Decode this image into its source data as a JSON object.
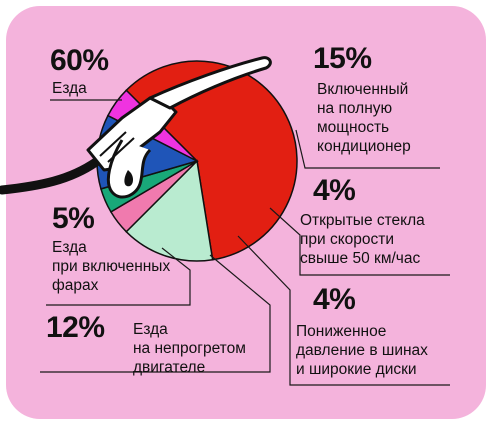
{
  "chart_data": {
    "type": "pie",
    "slices": [
      {
        "label": [
          "Езда"
        ],
        "percent_text": "60%",
        "value": 60,
        "color": "#e21f12"
      },
      {
        "label": [
          "Включенный",
          "на полную",
          "мощность",
          "кондиционер"
        ],
        "percent_text": "15%",
        "value": 15,
        "color": "#b9ebd0"
      },
      {
        "label": [
          "Открытые стекла",
          "при скорости",
          "свыше 50 км/час"
        ],
        "percent_text": "4%",
        "value": 4,
        "color": "#f07aae"
      },
      {
        "label": [
          "Пониженное",
          "давление в шинах",
          "и широкие диски"
        ],
        "percent_text": "4%",
        "value": 4,
        "color": "#19a879"
      },
      {
        "label": [
          "Езда",
          "на непрогретом",
          "двигателе"
        ],
        "percent_text": "12%",
        "value": 12,
        "color": "#1f55b8"
      },
      {
        "label": [
          "Езда",
          "при включенных",
          "фарах"
        ],
        "percent_text": "5%",
        "value": 5,
        "color": "#ef33e0"
      }
    ]
  },
  "colors": {
    "background_panel": "#f4b3dc",
    "nozzle": "#ffffff",
    "hose": "#111111"
  },
  "icons": {
    "fuel_nozzle": "fuel-nozzle-icon"
  }
}
